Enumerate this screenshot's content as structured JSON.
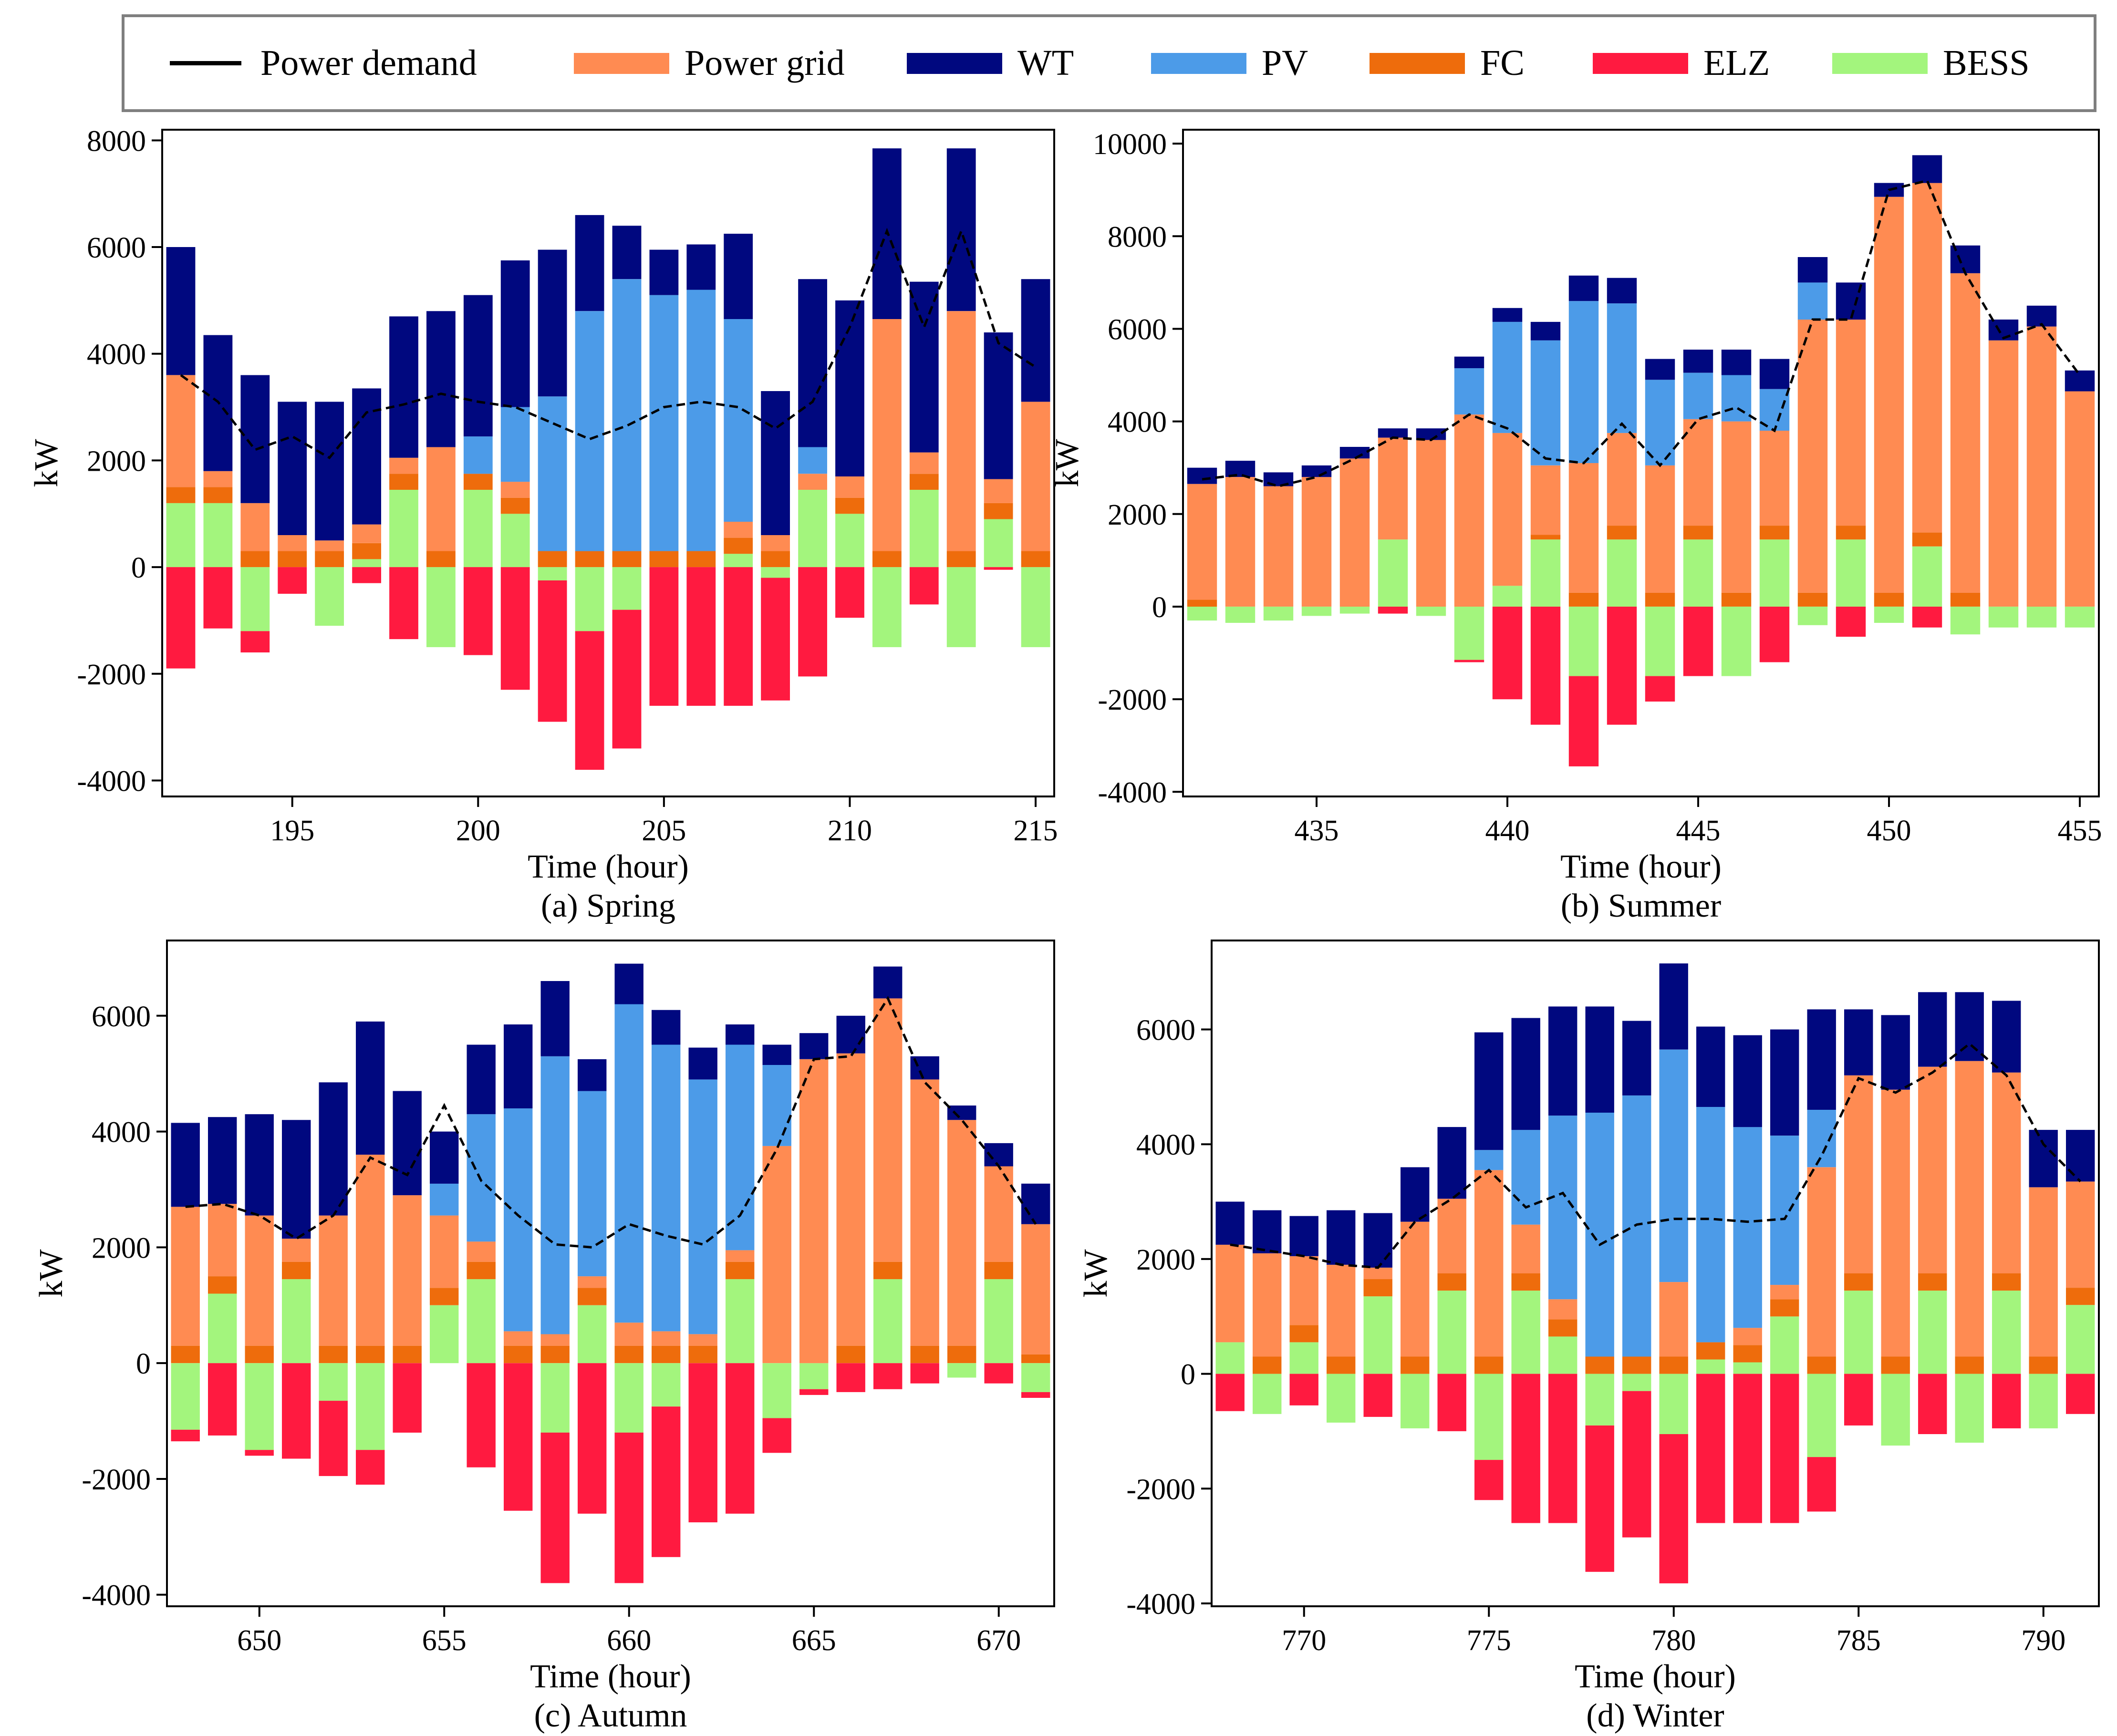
{
  "colors": {
    "power_demand": "#000000",
    "power_grid": "#ff8b52",
    "wt": "#00087f",
    "pv": "#4c9be8",
    "fc": "#ee6c0c",
    "elz": "#ff1a40",
    "bess": "#a3f57d"
  },
  "legend": [
    {
      "key": "power_demand",
      "label": "Power demand",
      "kind": "line"
    },
    {
      "key": "power_grid",
      "label": "Power grid",
      "kind": "bar"
    },
    {
      "key": "wt",
      "label": "WT",
      "kind": "bar"
    },
    {
      "key": "pv",
      "label": "PV",
      "kind": "bar"
    },
    {
      "key": "fc",
      "label": "FC",
      "kind": "bar"
    },
    {
      "key": "elz",
      "label": "ELZ",
      "kind": "bar"
    },
    {
      "key": "bess",
      "label": "BESS",
      "kind": "bar"
    }
  ],
  "chart_data": [
    {
      "type": "bar",
      "stacked": true,
      "title": "(a) Spring",
      "xlabel": "Time (hour)",
      "ylabel": "kW",
      "xlim": [
        191.5,
        215.5
      ],
      "ylim": [
        -4300,
        8200
      ],
      "xticks": [
        195,
        200,
        205,
        210,
        215
      ],
      "yticks": [
        -4000,
        -2000,
        0,
        2000,
        4000,
        6000,
        8000
      ],
      "hours": [
        192,
        193,
        194,
        195,
        196,
        197,
        198,
        199,
        200,
        201,
        202,
        203,
        204,
        205,
        206,
        207,
        208,
        209,
        210,
        211,
        212,
        213,
        214,
        215
      ],
      "series": [
        {
          "name": "BESS",
          "key": "bess",
          "values": [
            1200,
            1200,
            -1200,
            0,
            -1100,
            150,
            1450,
            -1500,
            1450,
            1000,
            -250,
            -1200,
            -800,
            0,
            0,
            250,
            -200,
            1450,
            1000,
            -1500,
            1450,
            -1500,
            900,
            -1500
          ]
        },
        {
          "name": "FC",
          "key": "fc",
          "values": [
            300,
            300,
            300,
            300,
            300,
            300,
            300,
            300,
            300,
            300,
            300,
            300,
            300,
            300,
            300,
            300,
            300,
            0,
            300,
            300,
            300,
            300,
            300,
            300
          ]
        },
        {
          "name": "Power grid",
          "key": "power_grid",
          "values": [
            2100,
            300,
            900,
            300,
            200,
            350,
            300,
            1950,
            0,
            300,
            0,
            0,
            0,
            0,
            0,
            300,
            300,
            300,
            400,
            4350,
            400,
            4500,
            450,
            2800
          ]
        },
        {
          "name": "PV",
          "key": "pv",
          "values": [
            0,
            0,
            0,
            0,
            0,
            0,
            0,
            0,
            700,
            1400,
            2900,
            4500,
            5100,
            4800,
            4900,
            3800,
            0,
            500,
            0,
            0,
            0,
            0,
            0,
            0
          ]
        },
        {
          "name": "WT",
          "key": "wt",
          "values": [
            2400,
            2550,
            2400,
            2500,
            2600,
            2550,
            2650,
            2550,
            2650,
            2750,
            2750,
            1800,
            1000,
            850,
            850,
            1600,
            2700,
            3150,
            3300,
            3200,
            3200,
            3050,
            2750,
            2300
          ]
        },
        {
          "name": "ELZ",
          "key": "elz",
          "values": [
            -1900,
            -1150,
            -400,
            -500,
            0,
            -300,
            -1350,
            0,
            -1650,
            -2300,
            -2650,
            -2600,
            -2600,
            -2600,
            -2600,
            -2600,
            -2300,
            -2050,
            -950,
            0,
            -700,
            0,
            -50,
            0
          ]
        }
      ],
      "demand": [
        3600,
        3100,
        2200,
        2450,
        2050,
        2900,
        3050,
        3250,
        3100,
        3000,
        2700,
        2400,
        2650,
        3000,
        3100,
        3000,
        2600,
        3100,
        4500,
        6300,
        4500,
        6300,
        4200,
        3750
      ]
    },
    {
      "type": "bar",
      "stacked": true,
      "title": "(b) Summer",
      "xlabel": "Time (hour)",
      "ylabel": "kW",
      "xlim": [
        431.5,
        455.5
      ],
      "ylim": [
        -4100,
        10300
      ],
      "xticks": [
        435,
        440,
        445,
        450,
        455
      ],
      "yticks": [
        -4000,
        -2000,
        0,
        2000,
        4000,
        6000,
        8000,
        10000
      ],
      "hours": [
        432,
        433,
        434,
        435,
        436,
        437,
        438,
        439,
        440,
        441,
        442,
        443,
        444,
        445,
        446,
        447,
        448,
        449,
        450,
        451,
        452,
        453,
        454,
        455
      ],
      "series": [
        {
          "name": "BESS",
          "key": "bess",
          "values": [
            -300,
            -350,
            -300,
            -200,
            -150,
            1450,
            -200,
            -1150,
            450,
            1450,
            -1500,
            1450,
            -1500,
            1450,
            -1500,
            1450,
            -400,
            1450,
            -350,
            1300,
            -600,
            -450,
            -450,
            -450
          ]
        },
        {
          "name": "FC",
          "key": "fc",
          "values": [
            150,
            0,
            0,
            0,
            0,
            0,
            0,
            0,
            0,
            100,
            300,
            300,
            300,
            300,
            300,
            300,
            300,
            300,
            300,
            300,
            300,
            0,
            0,
            0
          ]
        },
        {
          "name": "Power grid",
          "key": "power_grid",
          "values": [
            2500,
            2800,
            2600,
            2800,
            3200,
            2200,
            3600,
            4150,
            3300,
            1500,
            2800,
            2000,
            2750,
            2300,
            3700,
            2050,
            5900,
            4450,
            8550,
            7550,
            6900,
            5750,
            6050,
            4650
          ]
        },
        {
          "name": "PV",
          "key": "pv",
          "values": [
            0,
            0,
            0,
            0,
            0,
            0,
            0,
            1000,
            2400,
            2700,
            3500,
            2800,
            1850,
            1000,
            1000,
            900,
            800,
            0,
            0,
            0,
            0,
            0,
            0,
            0
          ]
        },
        {
          "name": "WT",
          "key": "wt",
          "values": [
            350,
            350,
            300,
            250,
            250,
            200,
            250,
            250,
            300,
            400,
            550,
            550,
            450,
            500,
            550,
            650,
            550,
            800,
            300,
            600,
            600,
            450,
            450,
            450
          ]
        },
        {
          "name": "ELZ",
          "key": "elz",
          "values": [
            0,
            0,
            0,
            0,
            0,
            -150,
            0,
            -50,
            -2000,
            -2550,
            -1950,
            -2550,
            -550,
            -1500,
            0,
            -1200,
            0,
            -650,
            0,
            -450,
            0,
            0,
            0,
            0
          ]
        }
      ],
      "demand": [
        2750,
        2850,
        2600,
        2800,
        3200,
        3650,
        3600,
        4150,
        3850,
        3200,
        3100,
        3950,
        3050,
        4050,
        4300,
        3800,
        6200,
        6200,
        9000,
        9200,
        7200,
        5800,
        6100,
        5000
      ]
    },
    {
      "type": "bar",
      "stacked": true,
      "title": "(c) Autumn",
      "xlabel": "Time (hour)",
      "ylabel": "kW",
      "xlim": [
        647.5,
        671.5
      ],
      "ylim": [
        -4200,
        7300
      ],
      "xticks": [
        650,
        655,
        660,
        665,
        670
      ],
      "yticks": [
        -4000,
        -2000,
        0,
        2000,
        4000,
        6000
      ],
      "hours": [
        648,
        649,
        650,
        651,
        652,
        653,
        654,
        655,
        656,
        657,
        658,
        659,
        660,
        661,
        662,
        663,
        664,
        665,
        666,
        667,
        668,
        669,
        670,
        671
      ],
      "series": [
        {
          "name": "BESS",
          "key": "bess",
          "values": [
            -1150,
            1200,
            -1500,
            1450,
            -650,
            -1500,
            0,
            1000,
            1450,
            0,
            -1200,
            1000,
            -1200,
            -750,
            0,
            1450,
            -950,
            -450,
            0,
            1450,
            0,
            -250,
            1450,
            -500
          ]
        },
        {
          "name": "FC",
          "key": "fc",
          "values": [
            300,
            300,
            300,
            300,
            300,
            300,
            300,
            300,
            300,
            300,
            300,
            300,
            300,
            300,
            300,
            300,
            0,
            0,
            300,
            300,
            300,
            300,
            300,
            150
          ]
        },
        {
          "name": "Power grid",
          "key": "power_grid",
          "values": [
            2400,
            1250,
            2250,
            400,
            2250,
            3300,
            2600,
            1250,
            350,
            250,
            200,
            200,
            400,
            250,
            200,
            200,
            3750,
            5250,
            5050,
            4550,
            4600,
            3900,
            1650,
            2250
          ]
        },
        {
          "name": "PV",
          "key": "pv",
          "values": [
            0,
            0,
            0,
            0,
            0,
            0,
            0,
            550,
            2200,
            3850,
            4800,
            3200,
            5500,
            4950,
            4400,
            3550,
            1400,
            0,
            0,
            0,
            0,
            0,
            0,
            0
          ]
        },
        {
          "name": "WT",
          "key": "wt",
          "values": [
            1450,
            1500,
            1750,
            2050,
            2300,
            2300,
            1800,
            900,
            1200,
            1450,
            1300,
            550,
            700,
            600,
            550,
            350,
            350,
            450,
            650,
            550,
            400,
            250,
            400,
            700
          ]
        },
        {
          "name": "ELZ",
          "key": "elz",
          "values": [
            -200,
            -1250,
            -100,
            -1650,
            -1300,
            -600,
            -1200,
            0,
            -1800,
            -2550,
            -2600,
            -2600,
            -2600,
            -2600,
            -2750,
            -2600,
            -600,
            -100,
            -500,
            -450,
            -350,
            0,
            -350,
            -100
          ]
        }
      ],
      "demand": [
        2700,
        2750,
        2550,
        2150,
        2550,
        3550,
        3250,
        4450,
        3150,
        2550,
        2050,
        2000,
        2400,
        2200,
        2050,
        2550,
        3700,
        5250,
        5300,
        6300,
        4850,
        4200,
        3400,
        2400
      ]
    },
    {
      "type": "bar",
      "stacked": true,
      "title": "(d) Winter",
      "xlabel": "Time (hour)",
      "ylabel": "kW",
      "xlim": [
        767.5,
        791.5
      ],
      "ylim": [
        -4050,
        7550
      ],
      "xticks": [
        770,
        775,
        780,
        785,
        790
      ],
      "yticks": [
        -4000,
        -2000,
        0,
        2000,
        4000,
        6000
      ],
      "hours": [
        768,
        769,
        770,
        771,
        772,
        773,
        774,
        775,
        776,
        777,
        778,
        779,
        780,
        781,
        782,
        783,
        784,
        785,
        786,
        787,
        788,
        789,
        790,
        791
      ],
      "series": [
        {
          "name": "BESS",
          "key": "bess",
          "values": [
            550,
            -700,
            550,
            -850,
            1350,
            -950,
            1450,
            -1500,
            1450,
            650,
            -900,
            -300,
            -1050,
            250,
            200,
            1000,
            -1450,
            1450,
            -1250,
            1450,
            -1200,
            1450,
            -950,
            1200
          ]
        },
        {
          "name": "FC",
          "key": "fc",
          "values": [
            0,
            300,
            300,
            300,
            300,
            300,
            300,
            300,
            300,
            300,
            300,
            300,
            300,
            300,
            300,
            300,
            300,
            300,
            300,
            300,
            300,
            300,
            300,
            300
          ]
        },
        {
          "name": "Power grid",
          "key": "power_grid",
          "values": [
            1700,
            1800,
            1200,
            1600,
            200,
            2350,
            1300,
            3250,
            850,
            350,
            0,
            0,
            1300,
            0,
            300,
            250,
            3300,
            3450,
            4650,
            3600,
            5150,
            3500,
            2950,
            1850
          ]
        },
        {
          "name": "PV",
          "key": "pv",
          "values": [
            0,
            0,
            0,
            0,
            0,
            0,
            0,
            350,
            1650,
            3200,
            4250,
            4550,
            4050,
            4100,
            3500,
            2600,
            1000,
            0,
            0,
            0,
            0,
            0,
            0,
            0
          ]
        },
        {
          "name": "WT",
          "key": "wt",
          "values": [
            750,
            750,
            700,
            950,
            950,
            950,
            1250,
            2050,
            1950,
            1900,
            1850,
            1300,
            1500,
            1400,
            1600,
            1850,
            1750,
            1150,
            1300,
            1300,
            1200,
            1250,
            1000,
            900
          ]
        },
        {
          "name": "ELZ",
          "key": "elz",
          "values": [
            -650,
            0,
            -550,
            0,
            -750,
            0,
            -1000,
            -700,
            -2600,
            -2600,
            -2550,
            -2550,
            -2600,
            -2600,
            -2600,
            -2600,
            -950,
            -900,
            0,
            -1050,
            0,
            -950,
            0,
            -700
          ]
        }
      ],
      "demand": [
        2250,
        2150,
        2050,
        1900,
        1850,
        2650,
        3050,
        3550,
        2900,
        3150,
        2250,
        2600,
        2700,
        2700,
        2650,
        2700,
        3800,
        5150,
        4900,
        5250,
        5750,
        5200,
        4000,
        3350
      ]
    }
  ]
}
